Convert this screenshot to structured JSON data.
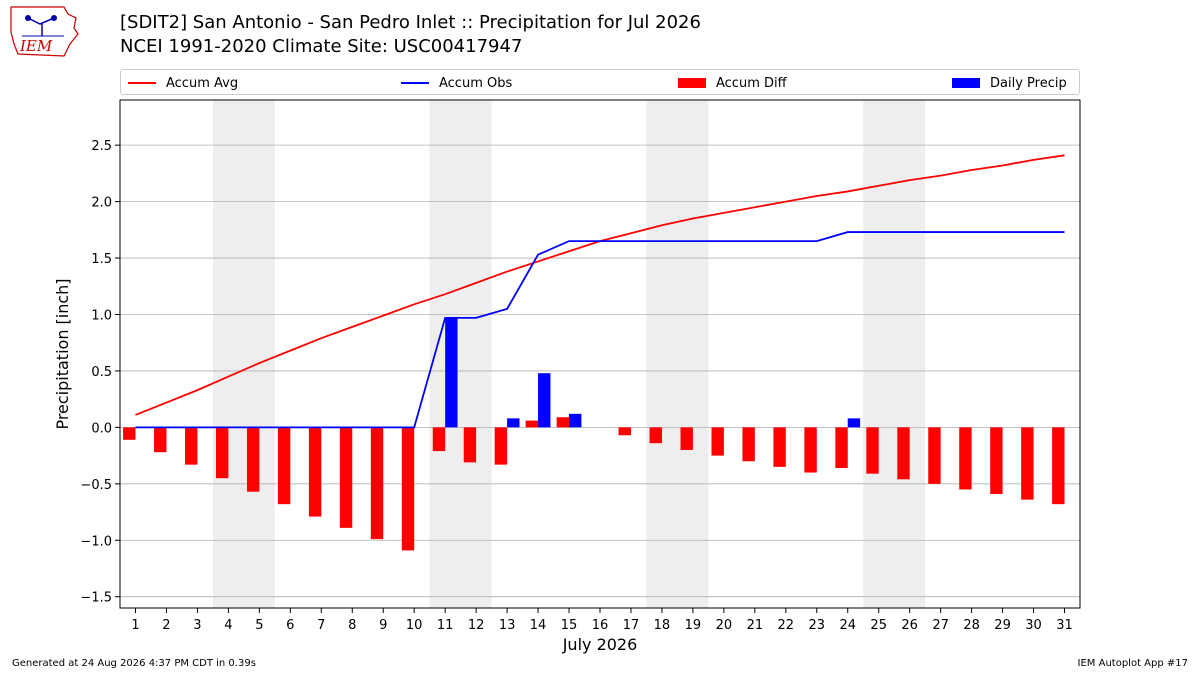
{
  "title_line1": "[SDIT2] San Antonio - San Pedro Inlet :: Precipitation for Jul 2026",
  "title_line2": "NCEI 1991-2020 Climate Site: USC00417947",
  "logo_text": "IEM",
  "footer_left": "Generated at 24 Aug 2026 4:37 PM CDT in 0.39s",
  "footer_right": "IEM Autoplot App #17",
  "colors": {
    "accum_avg": "#ff0000",
    "accum_obs": "#0000ff",
    "accum_diff": "#ff0000",
    "daily_precip": "#0000ff",
    "weekend_shade": "#eeeeee",
    "grid": "#b0b0b0"
  },
  "legend": [
    {
      "label": "Accum Avg",
      "kind": "line",
      "color": "#ff0000"
    },
    {
      "label": "Accum Obs",
      "kind": "line",
      "color": "#0000ff"
    },
    {
      "label": "Accum Diff",
      "kind": "bar",
      "color": "#ff0000"
    },
    {
      "label": "Daily Precip",
      "kind": "bar",
      "color": "#0000ff"
    }
  ],
  "chart_data": {
    "type": "line",
    "xlabel": "July 2026",
    "ylabel": "Precipitation [inch]",
    "xlim": [
      0.5,
      31.5
    ],
    "ylim": [
      -1.6,
      2.9
    ],
    "yticks": [
      -1.5,
      -1.0,
      -0.5,
      0.0,
      0.5,
      1.0,
      1.5,
      2.0,
      2.5
    ],
    "ytick_labels": [
      "−1.5",
      "−1.0",
      "−0.5",
      "0.0",
      "0.5",
      "1.0",
      "1.5",
      "2.0",
      "2.5"
    ],
    "grid": "horizontal",
    "legend_position": "top",
    "x": [
      1,
      2,
      3,
      4,
      5,
      6,
      7,
      8,
      9,
      10,
      11,
      12,
      13,
      14,
      15,
      16,
      17,
      18,
      19,
      20,
      21,
      22,
      23,
      24,
      25,
      26,
      27,
      28,
      29,
      30,
      31
    ],
    "weekend_spans": [
      [
        3.5,
        5.5
      ],
      [
        10.5,
        12.5
      ],
      [
        17.5,
        19.5
      ],
      [
        24.5,
        26.5
      ]
    ],
    "series": [
      {
        "name": "Accum Avg",
        "kind": "line",
        "values": [
          0.11,
          0.22,
          0.33,
          0.45,
          0.57,
          0.68,
          0.79,
          0.89,
          0.99,
          1.09,
          1.18,
          1.28,
          1.38,
          1.47,
          1.56,
          1.65,
          1.72,
          1.79,
          1.85,
          1.9,
          1.95,
          2.0,
          2.05,
          2.09,
          2.14,
          2.19,
          2.23,
          2.28,
          2.32,
          2.37,
          2.41
        ]
      },
      {
        "name": "Accum Obs",
        "kind": "line",
        "values": [
          0.0,
          0.0,
          0.0,
          0.0,
          0.0,
          0.0,
          0.0,
          0.0,
          0.0,
          0.0,
          0.97,
          0.97,
          1.05,
          1.53,
          1.65,
          1.65,
          1.65,
          1.65,
          1.65,
          1.65,
          1.65,
          1.65,
          1.65,
          1.73,
          1.73,
          1.73,
          1.73,
          1.73,
          1.73,
          1.73,
          1.73
        ]
      },
      {
        "name": "Accum Diff",
        "kind": "bar",
        "values": [
          -0.11,
          -0.22,
          -0.33,
          -0.45,
          -0.57,
          -0.68,
          -0.79,
          -0.89,
          -0.99,
          -1.09,
          -0.21,
          -0.31,
          -0.33,
          0.06,
          0.09,
          0.0,
          -0.07,
          -0.14,
          -0.2,
          -0.25,
          -0.3,
          -0.35,
          -0.4,
          -0.36,
          -0.41,
          -0.46,
          -0.5,
          -0.55,
          -0.59,
          -0.64,
          -0.68
        ]
      },
      {
        "name": "Daily Precip",
        "kind": "bar",
        "values": [
          0,
          0,
          0,
          0,
          0,
          0,
          0,
          0,
          0,
          0,
          0.97,
          0,
          0.08,
          0.48,
          0.12,
          0,
          0,
          0,
          0,
          0,
          0,
          0,
          0,
          0.08,
          0,
          0,
          0,
          0,
          0,
          0,
          0
        ]
      }
    ]
  }
}
